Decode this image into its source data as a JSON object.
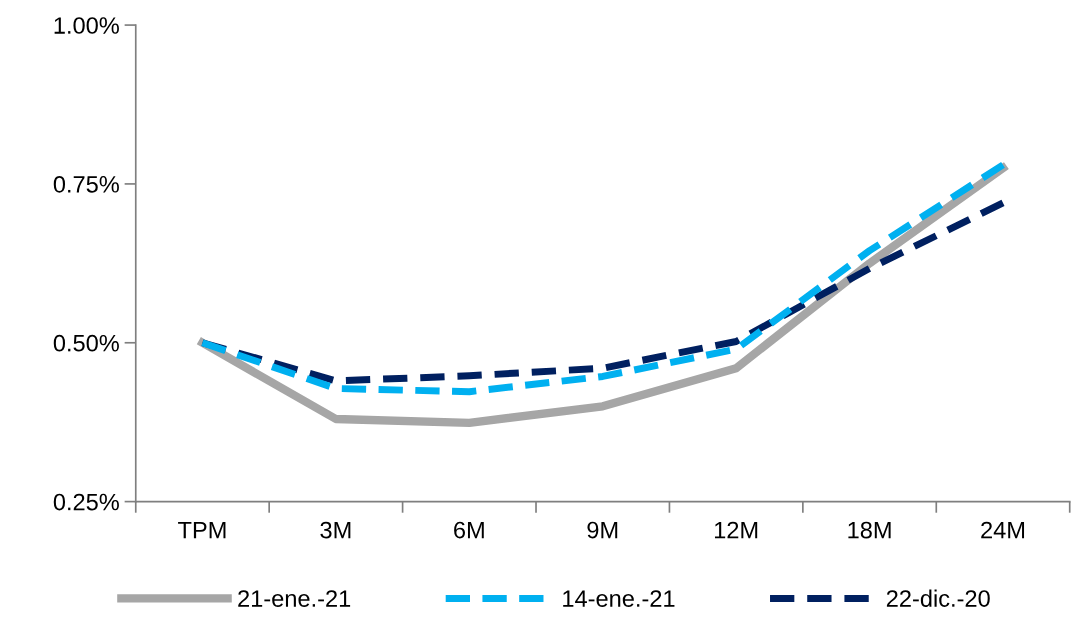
{
  "chart_data": {
    "type": "line",
    "categories": [
      "TPM",
      "3M",
      "6M",
      "9M",
      "12M",
      "18M",
      "24M"
    ],
    "series": [
      {
        "name": "21-ene.-21",
        "color": "#a6a6a6",
        "line_style": "solid",
        "values": [
          0.5,
          0.38,
          0.374,
          0.4,
          0.46,
          0.625,
          0.775
        ]
      },
      {
        "name": "14-ene.-21",
        "color": "#00b0f0",
        "line_style": "dashed",
        "values": [
          0.5,
          0.428,
          0.423,
          0.447,
          0.49,
          0.645,
          0.78
        ]
      },
      {
        "name": "22-dic.-20",
        "color": "#002060",
        "line_style": "dashed",
        "values": [
          0.5,
          0.44,
          0.448,
          0.46,
          0.502,
          0.617,
          0.72
        ]
      }
    ],
    "ylim": [
      0.25,
      1.0
    ],
    "yticks": [
      {
        "value": 0.25,
        "label": "0.25%"
      },
      {
        "value": 0.5,
        "label": "0.50%"
      },
      {
        "value": 0.75,
        "label": "0.75%"
      },
      {
        "value": 1.0,
        "label": "1.00%"
      }
    ],
    "grid": false,
    "legend": "bottom",
    "marker": "none"
  }
}
